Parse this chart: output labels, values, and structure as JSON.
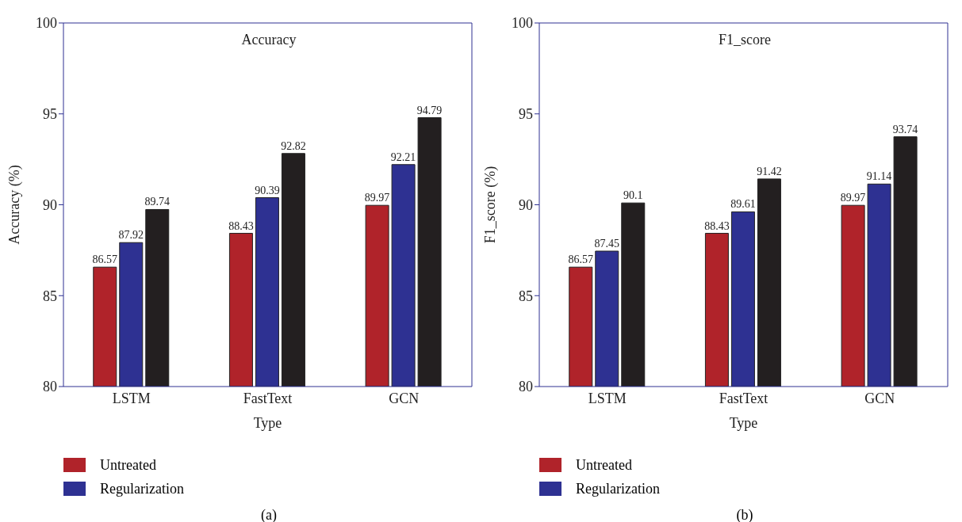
{
  "chart_data": [
    {
      "type": "bar",
      "title": "Accuracy",
      "xlabel": "Type",
      "ylabel": "Accuracy (%)",
      "categories": [
        "LSTM",
        "FastText",
        "GCN"
      ],
      "ylim": [
        80,
        100
      ],
      "yticks": [
        80,
        85,
        90,
        95,
        100
      ],
      "grid": false,
      "legend": "bottom",
      "data_labels": true,
      "annotations": [
        "(a)"
      ],
      "series": [
        {
          "name": "Untreated",
          "color": "#b0232a",
          "values": [
            86.57,
            88.43,
            89.97
          ]
        },
        {
          "name": "Regularization",
          "color": "#2e3192",
          "values": [
            87.92,
            90.39,
            92.21
          ]
        },
        {
          "color": "#231f20",
          "values": [
            89.74,
            92.82,
            94.79
          ]
        }
      ]
    },
    {
      "type": "bar",
      "title": "F1_score",
      "xlabel": "Type",
      "ylabel": "F1_score (%)",
      "categories": [
        "LSTM",
        "FastText",
        "GCN"
      ],
      "ylim": [
        80,
        100
      ],
      "yticks": [
        80,
        85,
        90,
        95,
        100
      ],
      "grid": false,
      "legend": "bottom",
      "data_labels": true,
      "annotations": [
        "(b)"
      ],
      "series": [
        {
          "name": "Untreated",
          "color": "#b0232a",
          "values": [
            86.57,
            88.43,
            89.97
          ]
        },
        {
          "name": "Regularization",
          "color": "#2e3192",
          "values": [
            87.45,
            89.61,
            91.14
          ]
        },
        {
          "color": "#231f20",
          "values": [
            90.1,
            91.42,
            93.74
          ]
        }
      ]
    }
  ]
}
